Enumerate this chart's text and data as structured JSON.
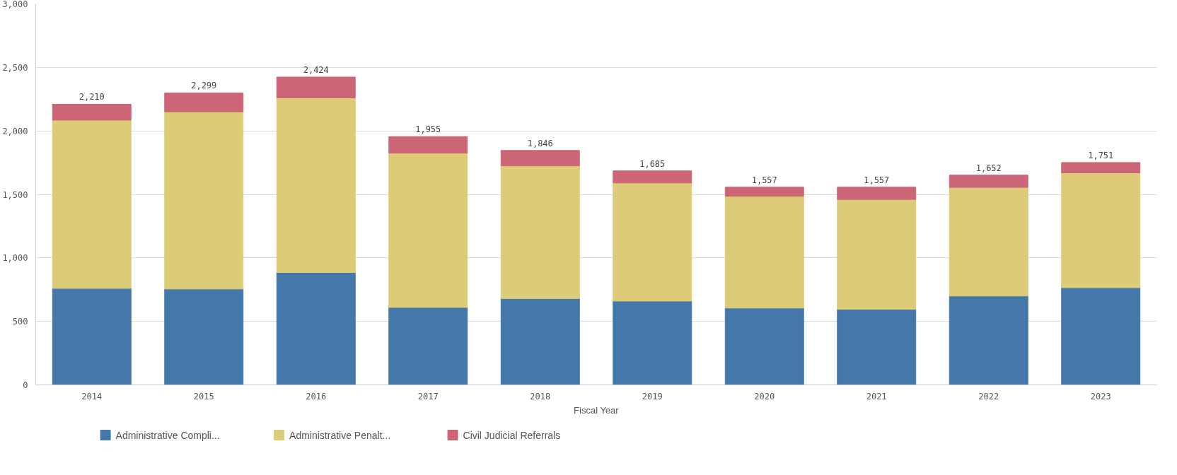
{
  "chart_data": {
    "type": "bar",
    "stacked": true,
    "xlabel": "Fiscal Year",
    "categories": [
      "2014",
      "2015",
      "2016",
      "2017",
      "2018",
      "2019",
      "2020",
      "2021",
      "2022",
      "2023"
    ],
    "series": [
      {
        "name": "Administrative Compli...",
        "color": "#4477aa",
        "values": [
          760,
          755,
          885,
          610,
          680,
          660,
          605,
          595,
          700,
          765
        ]
      },
      {
        "name": "Administrative Penalt...",
        "color": "#ddcc77",
        "values": [
          1325,
          1395,
          1375,
          1215,
          1045,
          930,
          880,
          865,
          855,
          905
        ]
      },
      {
        "name": "Civil Judicial Referrals",
        "color": "#cc6677",
        "values": [
          125,
          149,
          164,
          130,
          121,
          95,
          72,
          97,
          97,
          81
        ]
      }
    ],
    "totals": [
      "2,210",
      "2,299",
      "2,424",
      "1,955",
      "1,846",
      "1,685",
      "1,557",
      "1,557",
      "1,652",
      "1,751"
    ],
    "ylim": [
      0,
      3000
    ],
    "yticks": [
      {
        "value": 0,
        "label": "0"
      },
      {
        "value": 500,
        "label": "500"
      },
      {
        "value": 1000,
        "label": "1,000"
      },
      {
        "value": 1500,
        "label": "1,500"
      },
      {
        "value": 2000,
        "label": "2,000"
      },
      {
        "value": 2500,
        "label": "2,500"
      },
      {
        "value": 3000,
        "label": "3,000"
      }
    ],
    "grid": "y",
    "legend": "bottom"
  }
}
